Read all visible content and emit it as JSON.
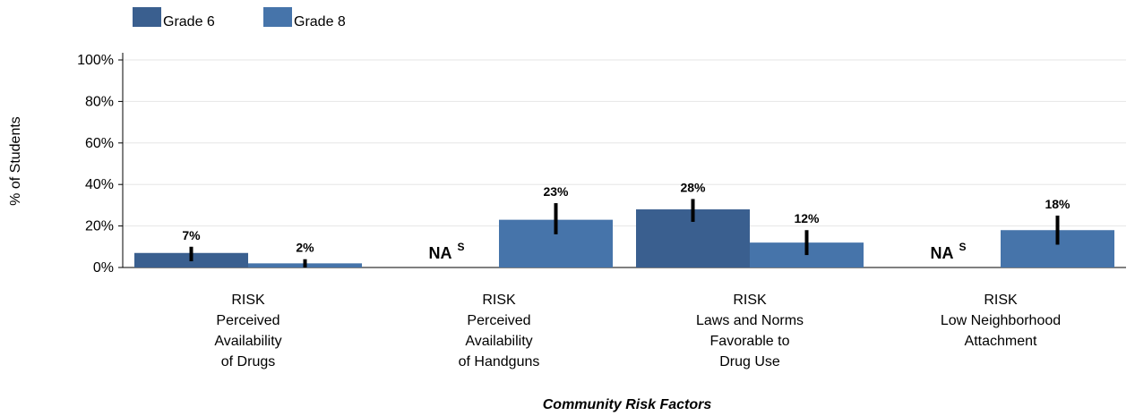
{
  "chart_data": {
    "type": "bar",
    "ylabel": "% of Students",
    "xlabel": "Community Risk Factors",
    "ylim": [
      0,
      100
    ],
    "yticks": [
      "0%",
      "20%",
      "40%",
      "60%",
      "80%",
      "100%"
    ],
    "ytick_values": [
      0,
      20,
      40,
      60,
      80,
      100
    ],
    "grid": true,
    "legend_position": "top-left",
    "categories": [
      [
        "RISK",
        "Perceived",
        "Availability",
        "of Drugs"
      ],
      [
        "RISK",
        "Perceived",
        "Availability",
        "of Handguns"
      ],
      [
        "RISK",
        "Laws and Norms",
        "Favorable to",
        "Drug Use"
      ],
      [
        "RISK",
        "Low Neighborhood",
        "Attachment"
      ]
    ],
    "na_text": "NA",
    "na_superscript": "S",
    "series": [
      {
        "name": "Grade 6",
        "color": "#3a5f8f",
        "values": [
          7,
          null,
          28,
          null
        ],
        "labels": [
          "7%",
          "NA",
          "28%",
          "NA"
        ],
        "error_low": [
          3,
          null,
          22,
          null
        ],
        "error_high": [
          10,
          null,
          33,
          null
        ]
      },
      {
        "name": "Grade 8",
        "color": "#4674aa",
        "values": [
          2,
          23,
          12,
          18
        ],
        "labels": [
          "2%",
          "23%",
          "12%",
          "18%"
        ],
        "error_low": [
          0,
          16,
          6,
          11
        ],
        "error_high": [
          4,
          31,
          18,
          25
        ]
      }
    ]
  }
}
